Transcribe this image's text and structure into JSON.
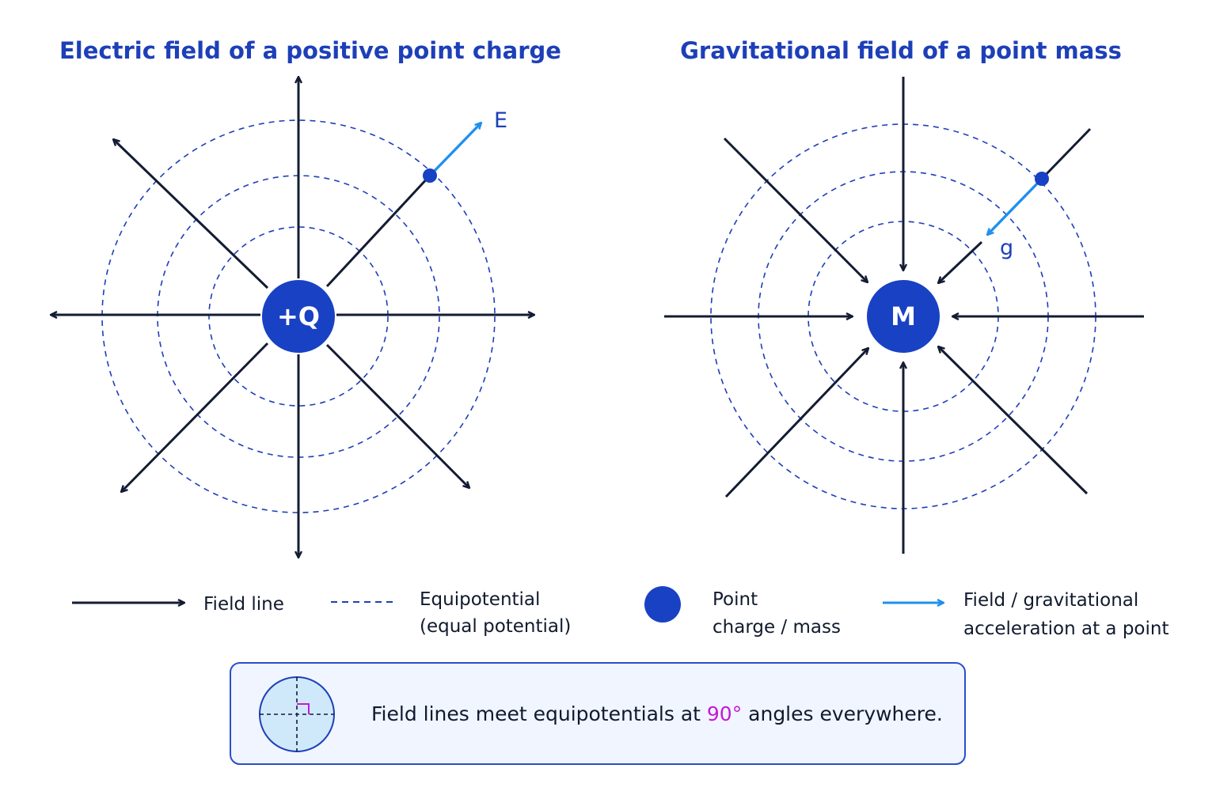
{
  "panels": [
    {
      "id": "electric",
      "title": "Electric field of a positive point charge",
      "center_label": "+Q",
      "vector_label": "E",
      "field_direction": "outward"
    },
    {
      "id": "gravity",
      "title": "Gravitational field of a point mass",
      "center_label": "M",
      "vector_label": "g",
      "field_direction": "inward"
    }
  ],
  "legend": {
    "field_line": "Field line",
    "equipotential_1": "Equipotential",
    "equipotential_2": "(equal potential)",
    "point_1": "Point",
    "point_2": "charge / mass",
    "vector_1": "Field / gravitational",
    "vector_2": "acceleration at a point"
  },
  "note": {
    "before": "Field lines meet equipotentials at ",
    "angle": "90°",
    "after": " angles everywhere."
  },
  "colors": {
    "title": "#1d3fb8",
    "charge": "#1941c4",
    "field_line": "#141c33",
    "equipotential": "#1d3fb8",
    "vector": "#1e90ee",
    "angle_highlight": "#c418d9",
    "note_border": "#2b4ec9",
    "note_bg": "#f0f5ff"
  }
}
